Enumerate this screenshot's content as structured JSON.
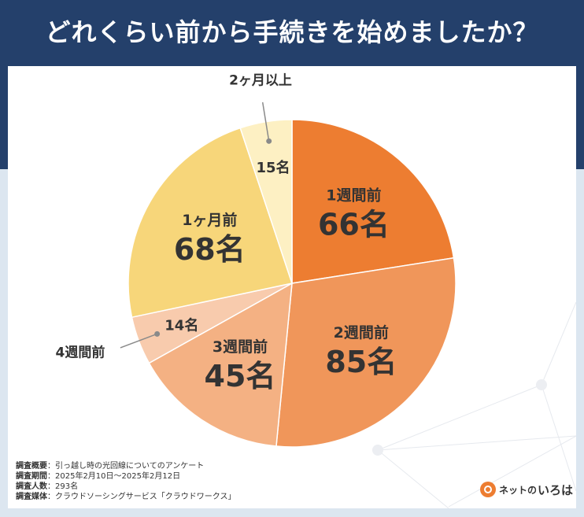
{
  "title": "どれくらい前から手続きを始めましたか？",
  "chart_data": {
    "type": "pie",
    "title": "どれくらい前から手続きを始めましたか？",
    "total": 293,
    "unit": "名",
    "slices": [
      {
        "label": "1週間前",
        "value": 66,
        "color": "#ed7d31"
      },
      {
        "label": "2週間前",
        "value": 85,
        "color": "#f0965a"
      },
      {
        "label": "3週間前",
        "value": 45,
        "color": "#f4b183"
      },
      {
        "label": "4週間前",
        "value": 14,
        "color": "#f8cbad"
      },
      {
        "label": "1ヶ月前",
        "value": 68,
        "color": "#f7d67a"
      },
      {
        "label": "2ヶ月以上",
        "value": 15,
        "color": "#fdf0c3"
      }
    ]
  },
  "survey": {
    "overview_label": "調査概要",
    "overview": "引っ越し時の光回線についてのアンケート",
    "period_label": "調査期間",
    "period": "2025年2月10日〜2025年2月12日",
    "count_label": "調査人数",
    "count": "293名",
    "media_label": "調査媒体",
    "media": "クラウドソーシングサービス「クラウドワークス」"
  },
  "logo": {
    "text_prefix": "ネットの",
    "text_main": "いろは"
  }
}
